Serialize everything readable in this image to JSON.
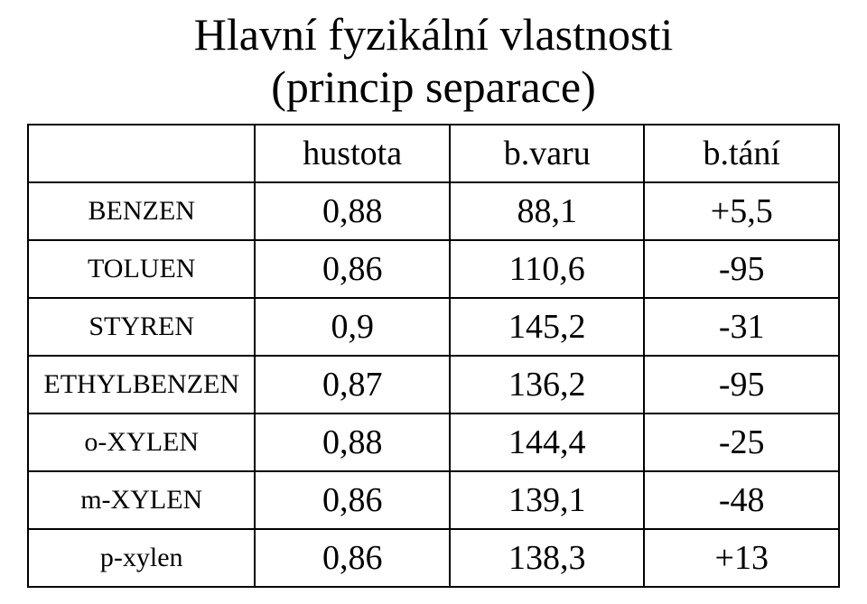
{
  "title_line1": "Hlavní fyzikální vlastnosti",
  "title_line2": "(princip separace)",
  "table": {
    "columns": [
      "hustota",
      "b.varu",
      "b.tání"
    ],
    "rows": [
      {
        "label": "BENZEN",
        "values": [
          "0,88",
          "88,1",
          "+5,5"
        ]
      },
      {
        "label": "TOLUEN",
        "values": [
          "0,86",
          "110,6",
          "-95"
        ]
      },
      {
        "label": "STYREN",
        "values": [
          "0,9",
          "145,2",
          "-31"
        ]
      },
      {
        "label": "ETHYLBENZEN",
        "values": [
          "0,87",
          "136,2",
          "-95"
        ]
      },
      {
        "label": "o-XYLEN",
        "values": [
          "0,88",
          "144,4",
          "-25"
        ]
      },
      {
        "label": "m-XYLEN",
        "values": [
          "0,86",
          "139,1",
          "-48"
        ]
      },
      {
        "label": "p-xylen",
        "values": [
          "0,86",
          "138,3",
          "+13"
        ]
      }
    ]
  }
}
